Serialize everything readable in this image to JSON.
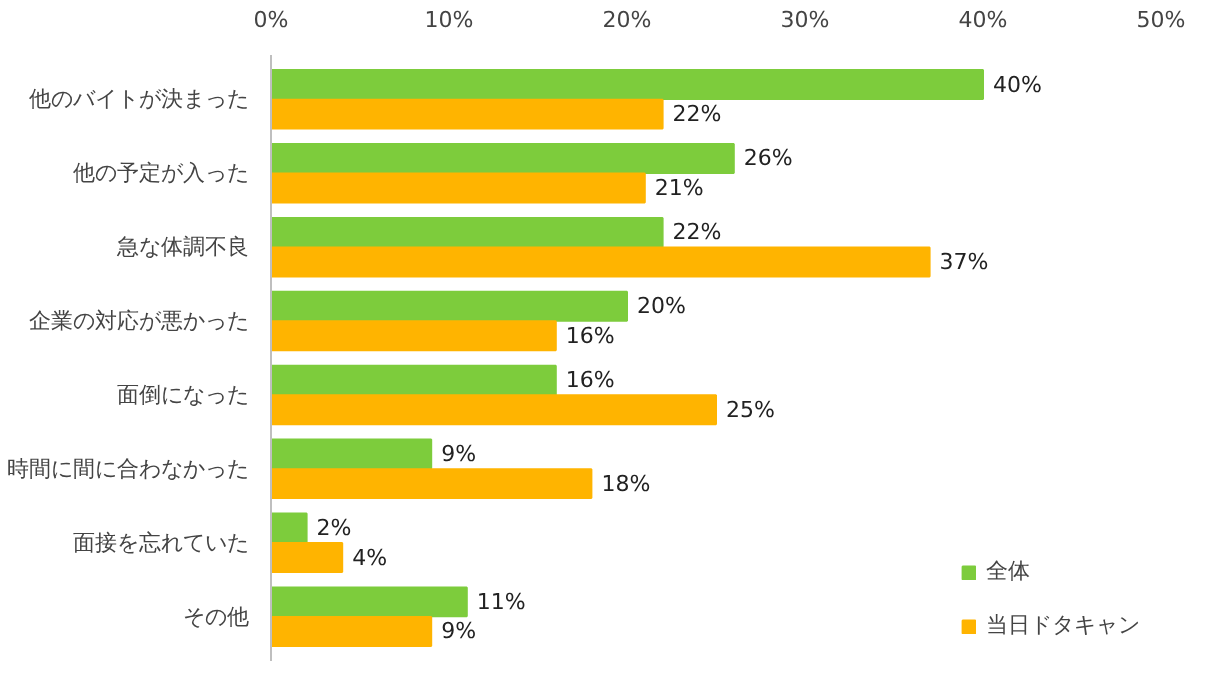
{
  "chart_data": {
    "type": "bar",
    "orientation": "horizontal",
    "categories": [
      "他のバイトが決まった",
      "他の予定が入った",
      "急な体調不良",
      "企業の対応が悪かった",
      "面倒になった",
      "時間に間に合わなかった",
      "面接を忘れていた",
      "その他"
    ],
    "series": [
      {
        "name": "全体",
        "color": "#7dcc3c",
        "values": [
          40,
          26,
          22,
          20,
          16,
          9,
          2,
          11
        ],
        "value_labels": [
          "40%",
          "26%",
          "22%",
          "20%",
          "16%",
          "9%",
          "2%",
          "11%"
        ]
      },
      {
        "name": "当日ドタキャン",
        "color": "#ffb400",
        "values": [
          22,
          21,
          37,
          16,
          25,
          18,
          4,
          9
        ],
        "value_labels": [
          "22%",
          "21%",
          "37%",
          "16%",
          "25%",
          "18%",
          "4%",
          "9%"
        ]
      }
    ],
    "xlim": [
      0,
      50
    ],
    "xticks": [
      {
        "value": 0,
        "label": "0%"
      },
      {
        "value": 10,
        "label": "10%"
      },
      {
        "value": 20,
        "label": "20%"
      },
      {
        "value": 30,
        "label": "30%"
      },
      {
        "value": 40,
        "label": "40%"
      },
      {
        "value": 50,
        "label": "50%"
      }
    ],
    "grid": false,
    "legend": "bottom right"
  }
}
